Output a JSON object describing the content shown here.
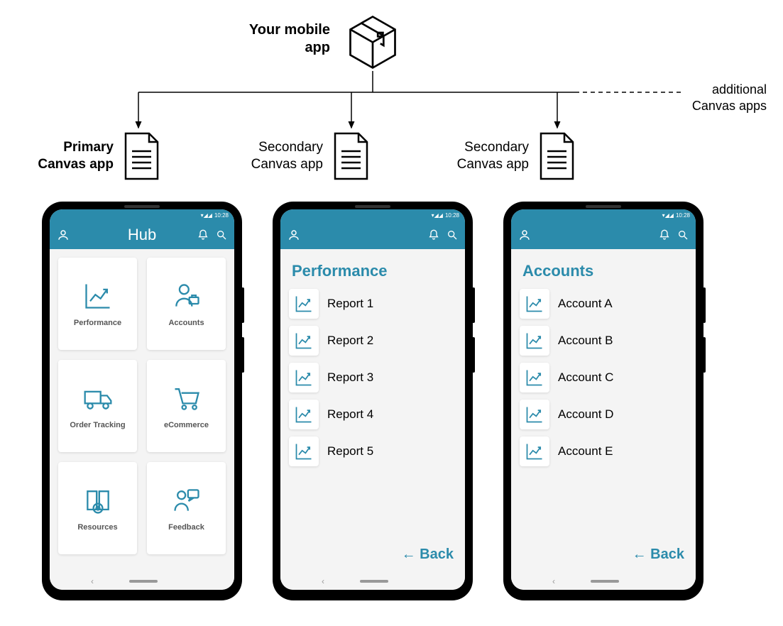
{
  "colors": {
    "accent": "#2b8bab",
    "bg": "#f4f4f4",
    "card": "#ffffff",
    "text": "#000000",
    "muted": "#555555"
  },
  "top": {
    "label": "Your mobile app",
    "additional": "additional Canvas apps"
  },
  "docs": {
    "primary": "Primary Canvas app",
    "secondary1": "Secondary Canvas app",
    "secondary2": "Secondary Canvas app"
  },
  "statusbar": {
    "time": "10:28"
  },
  "phone1": {
    "title": "Hub",
    "tiles": [
      {
        "label": "Performance",
        "icon": "chart"
      },
      {
        "label": "Accounts",
        "icon": "person"
      },
      {
        "label": "Order Tracking",
        "icon": "truck"
      },
      {
        "label": "eCommerce",
        "icon": "cart"
      },
      {
        "label": "Resources",
        "icon": "book"
      },
      {
        "label": "Feedback",
        "icon": "feedback"
      }
    ]
  },
  "phone2": {
    "title": "Performance",
    "items": [
      "Report 1",
      "Report 2",
      "Report 3",
      "Report 4",
      "Report 5"
    ],
    "back": "← Back"
  },
  "phone3": {
    "title": "Accounts",
    "items": [
      "Account A",
      "Account B",
      "Account C",
      "Account D",
      "Account E"
    ],
    "back": "← Back"
  }
}
